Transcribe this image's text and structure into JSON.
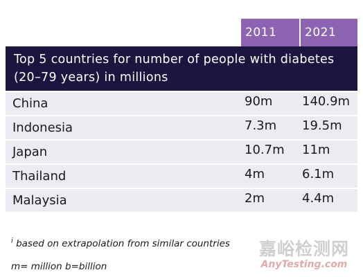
{
  "chart_data": {
    "type": "table",
    "title": "Top 5 countries for number of people with diabetes (20–79 years) in millions",
    "columns": [
      "2011",
      "2021"
    ],
    "rows": [
      {
        "country": "China",
        "v2011": "90m",
        "v2021": "140.9m"
      },
      {
        "country": "Indonesia",
        "v2011": "7.3m",
        "v2021": "19.5m"
      },
      {
        "country": "Japan",
        "v2011": "10.7m",
        "v2021": "11m"
      },
      {
        "country": "Thailand",
        "v2011": "4m",
        "v2021": "6.1m"
      },
      {
        "country": "Malaysia",
        "v2011": "2m",
        "v2021": "4.4m"
      }
    ]
  },
  "footnotes": {
    "marker": "i",
    "note1": "based on extrapolation from similar countries",
    "note2": "m= million b=billion"
  },
  "watermark": {
    "cn": "嘉峪检测网",
    "en": "AnyTesting.com"
  },
  "colors": {
    "header_purple": "#8c64b2",
    "title_navy": "#1c1540",
    "row_gray": "#ebebf1"
  }
}
